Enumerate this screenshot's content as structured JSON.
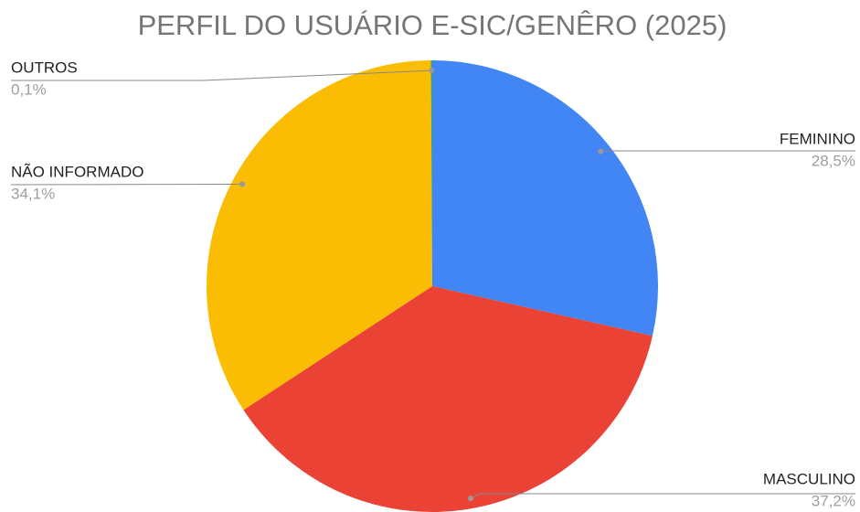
{
  "chart_data": {
    "type": "pie",
    "title": "PERFIL DO USUÁRIO E-SIC/GENÊRO (2025)",
    "categories": [
      "FEMININO",
      "MASCULINO",
      "NÃO INFORMADO",
      "OUTROS"
    ],
    "values": [
      28.5,
      37.2,
      34.1,
      0.1
    ],
    "value_labels": [
      "28,5%",
      "37,2%",
      "34,1%",
      "0,1%"
    ],
    "colors": [
      "#4285f4",
      "#ea4335",
      "#fbbc04",
      "#34a853"
    ]
  }
}
